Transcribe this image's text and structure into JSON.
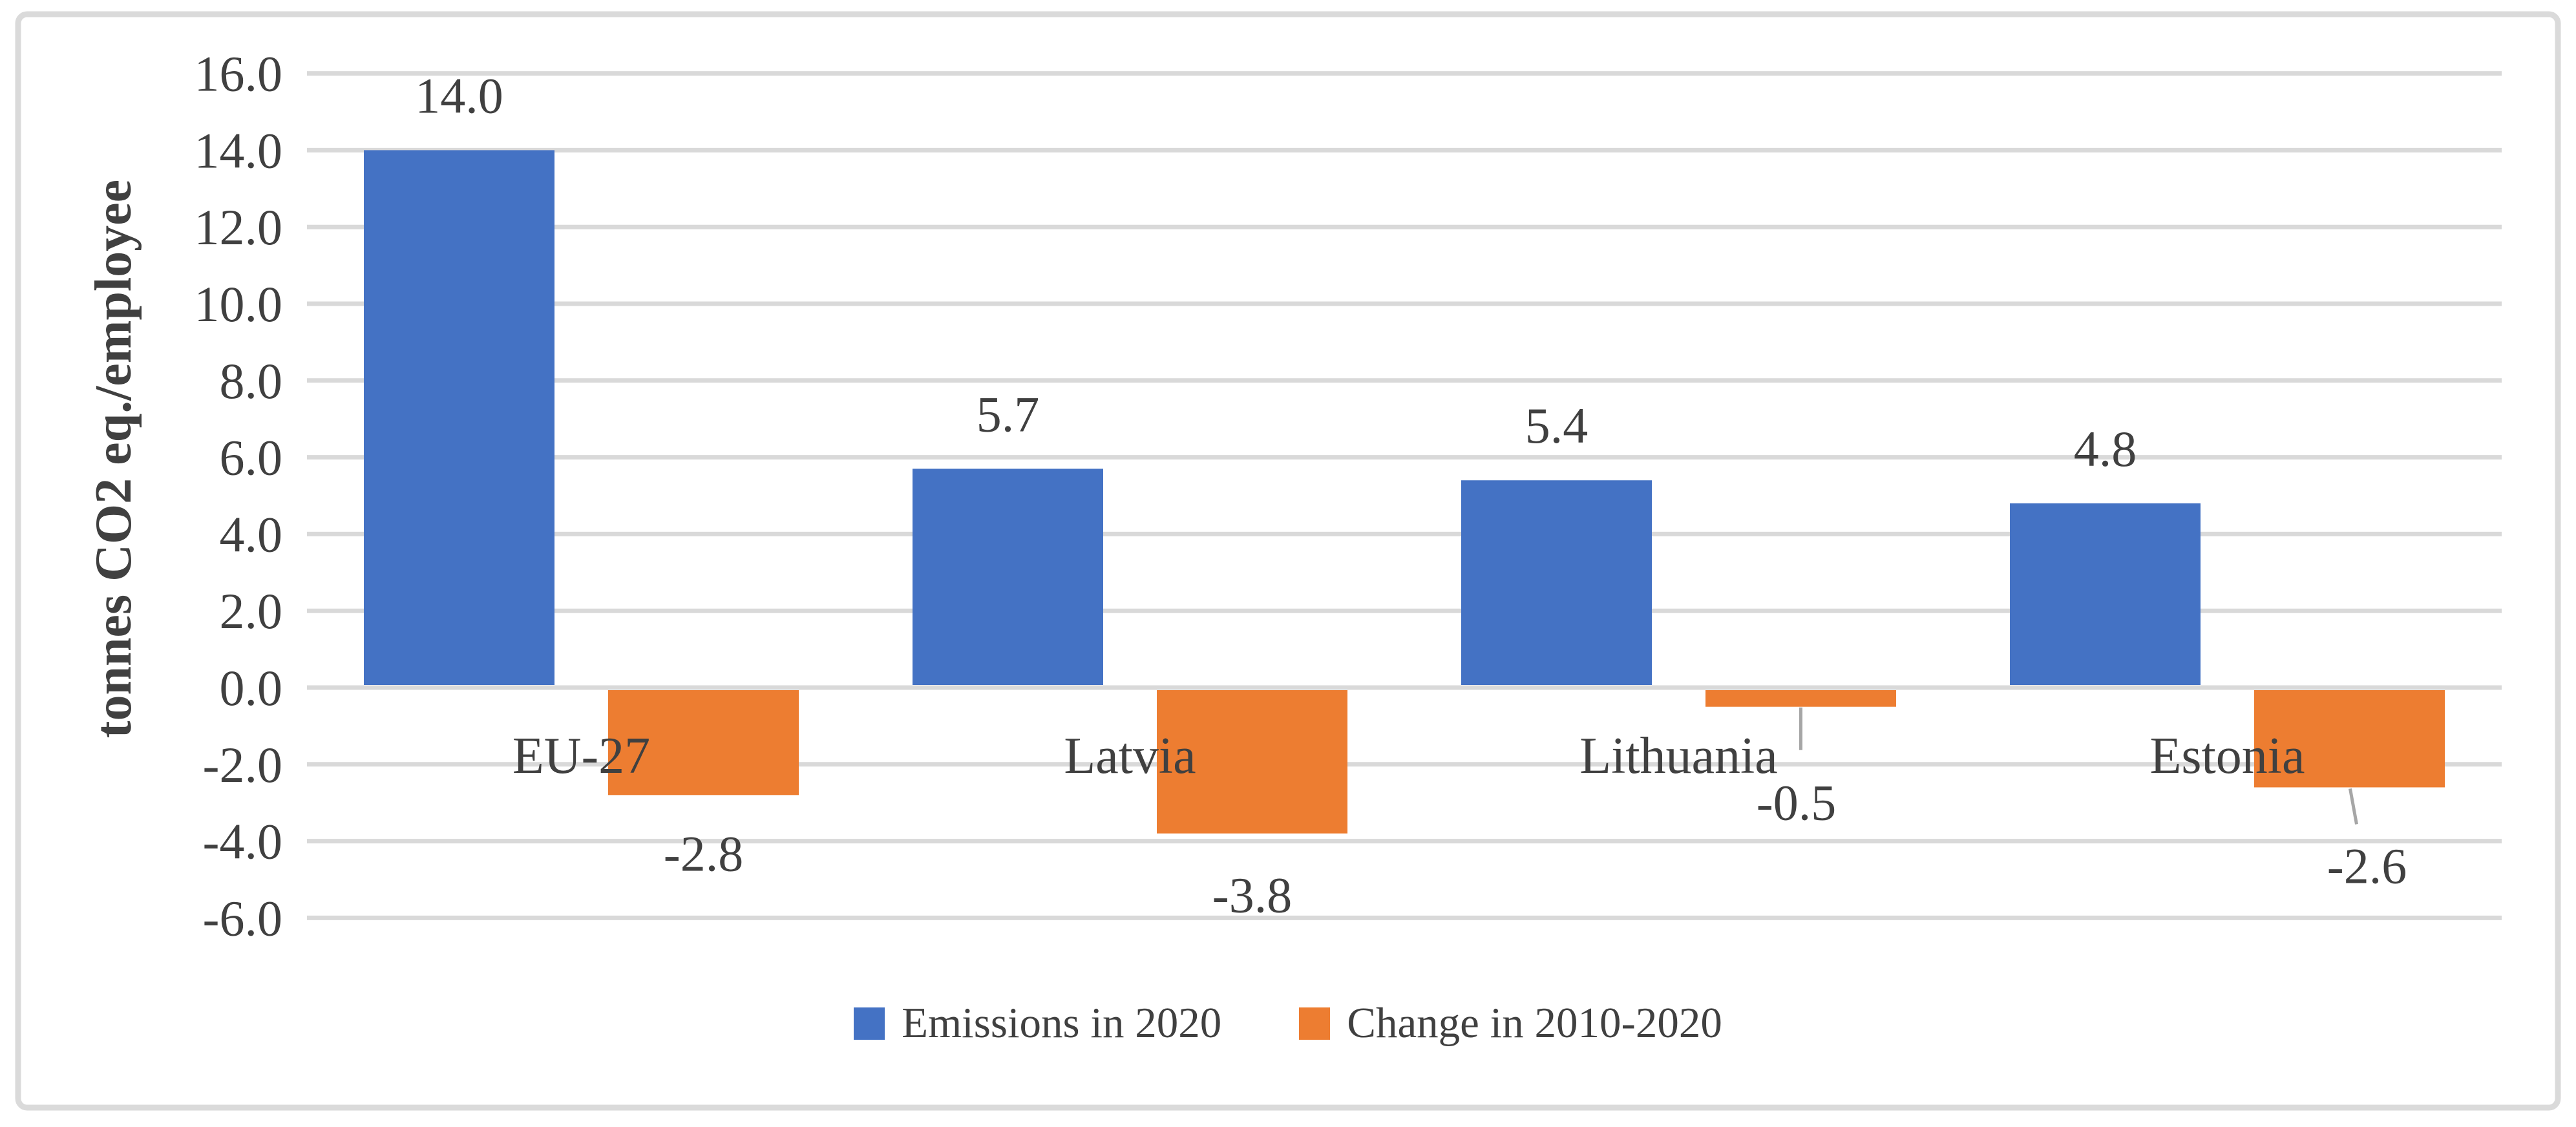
{
  "figure": {
    "background": "#FFFFFF",
    "border_color": "#DADADA",
    "text_color": "#404040",
    "gridline_color": "#D9D9D9",
    "leader_line_color": "#A6A6A6"
  },
  "chart_data": {
    "type": "bar",
    "categories": [
      "EU-27",
      "Latvia",
      "Lithuania",
      "Estonia"
    ],
    "series": [
      {
        "name": "Emissions in 2020",
        "color": "#4472C4",
        "values": [
          14.0,
          5.7,
          5.4,
          4.8
        ],
        "labels": [
          "14.0",
          "5.7",
          "5.4",
          "4.8"
        ]
      },
      {
        "name": "Change in 2010-2020",
        "color": "#ED7D31",
        "values": [
          -2.8,
          -3.8,
          -0.5,
          -2.6
        ],
        "labels": [
          "-2.8",
          "-3.8",
          "-0.5",
          "-2.6"
        ]
      }
    ],
    "title": "",
    "xlabel": "",
    "ylabel": "tonnes CO2 eq./employee",
    "ylim": [
      -6.0,
      16.0
    ],
    "ytick_step": 2.0,
    "ytick_labels": [
      "16.0",
      "14.0",
      "12.0",
      "10.0",
      "8.0",
      "6.0",
      "4.0",
      "2.0",
      "0.0",
      "-2.0",
      "-4.0",
      "-6.0"
    ],
    "grid": true,
    "legend_position": "bottom"
  }
}
